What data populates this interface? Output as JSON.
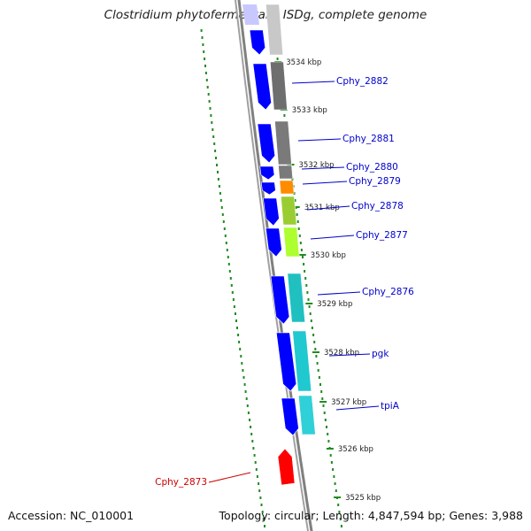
{
  "title": "Clostridium phytofermentans ISDg, complete genome",
  "accession": {
    "label": "Accession:",
    "value": "NC_010001"
  },
  "summary": {
    "topology_label": "Topology:",
    "topology": "circular",
    "length_label": "Length:",
    "length": "4,847,594 bp",
    "genes_label": "Genes:",
    "genes": "3,988"
  },
  "colors": {
    "backbone": "#808080",
    "gc_dots": "#228b22",
    "forward_strand": "#0000ff",
    "label_line": "#0000cc",
    "highlight": "#ff0000"
  },
  "ticks": [
    {
      "label": "3534 kbp"
    },
    {
      "label": "3533 kbp"
    },
    {
      "label": "3532 kbp"
    },
    {
      "label": "3531 kbp"
    },
    {
      "label": "3530 kbp"
    },
    {
      "label": "3529 kbp"
    },
    {
      "label": "3528 kbp"
    },
    {
      "label": "3527 kbp"
    },
    {
      "label": "3526 kbp"
    },
    {
      "label": "3525 kbp"
    }
  ],
  "gene_labels": [
    {
      "name": "Cphy_2882",
      "color": "#0000cc"
    },
    {
      "name": "Cphy_2881",
      "color": "#0000cc"
    },
    {
      "name": "Cphy_2880",
      "color": "#0000cc"
    },
    {
      "name": "Cphy_2879",
      "color": "#0000cc"
    },
    {
      "name": "Cphy_2878",
      "color": "#0000cc"
    },
    {
      "name": "Cphy_2877",
      "color": "#0000cc"
    },
    {
      "name": "Cphy_2876",
      "color": "#0000cc"
    },
    {
      "name": "pgk",
      "color": "#0000cc"
    },
    {
      "name": "tpiA",
      "color": "#0000cc"
    },
    {
      "name": "Cphy_2873",
      "color": "#cc0000"
    }
  ],
  "cog_blocks": [
    {
      "color": "#c8c8c8"
    },
    {
      "color": "#6e6e6e"
    },
    {
      "color": "#7a7a7a"
    },
    {
      "color": "#7a7a7a"
    },
    {
      "color": "#ff8c00"
    },
    {
      "color": "#9acd32"
    },
    {
      "color": "#adff2f"
    },
    {
      "color": "#20c0c0"
    },
    {
      "color": "#20c8d0"
    },
    {
      "color": "#30d0d8"
    }
  ]
}
